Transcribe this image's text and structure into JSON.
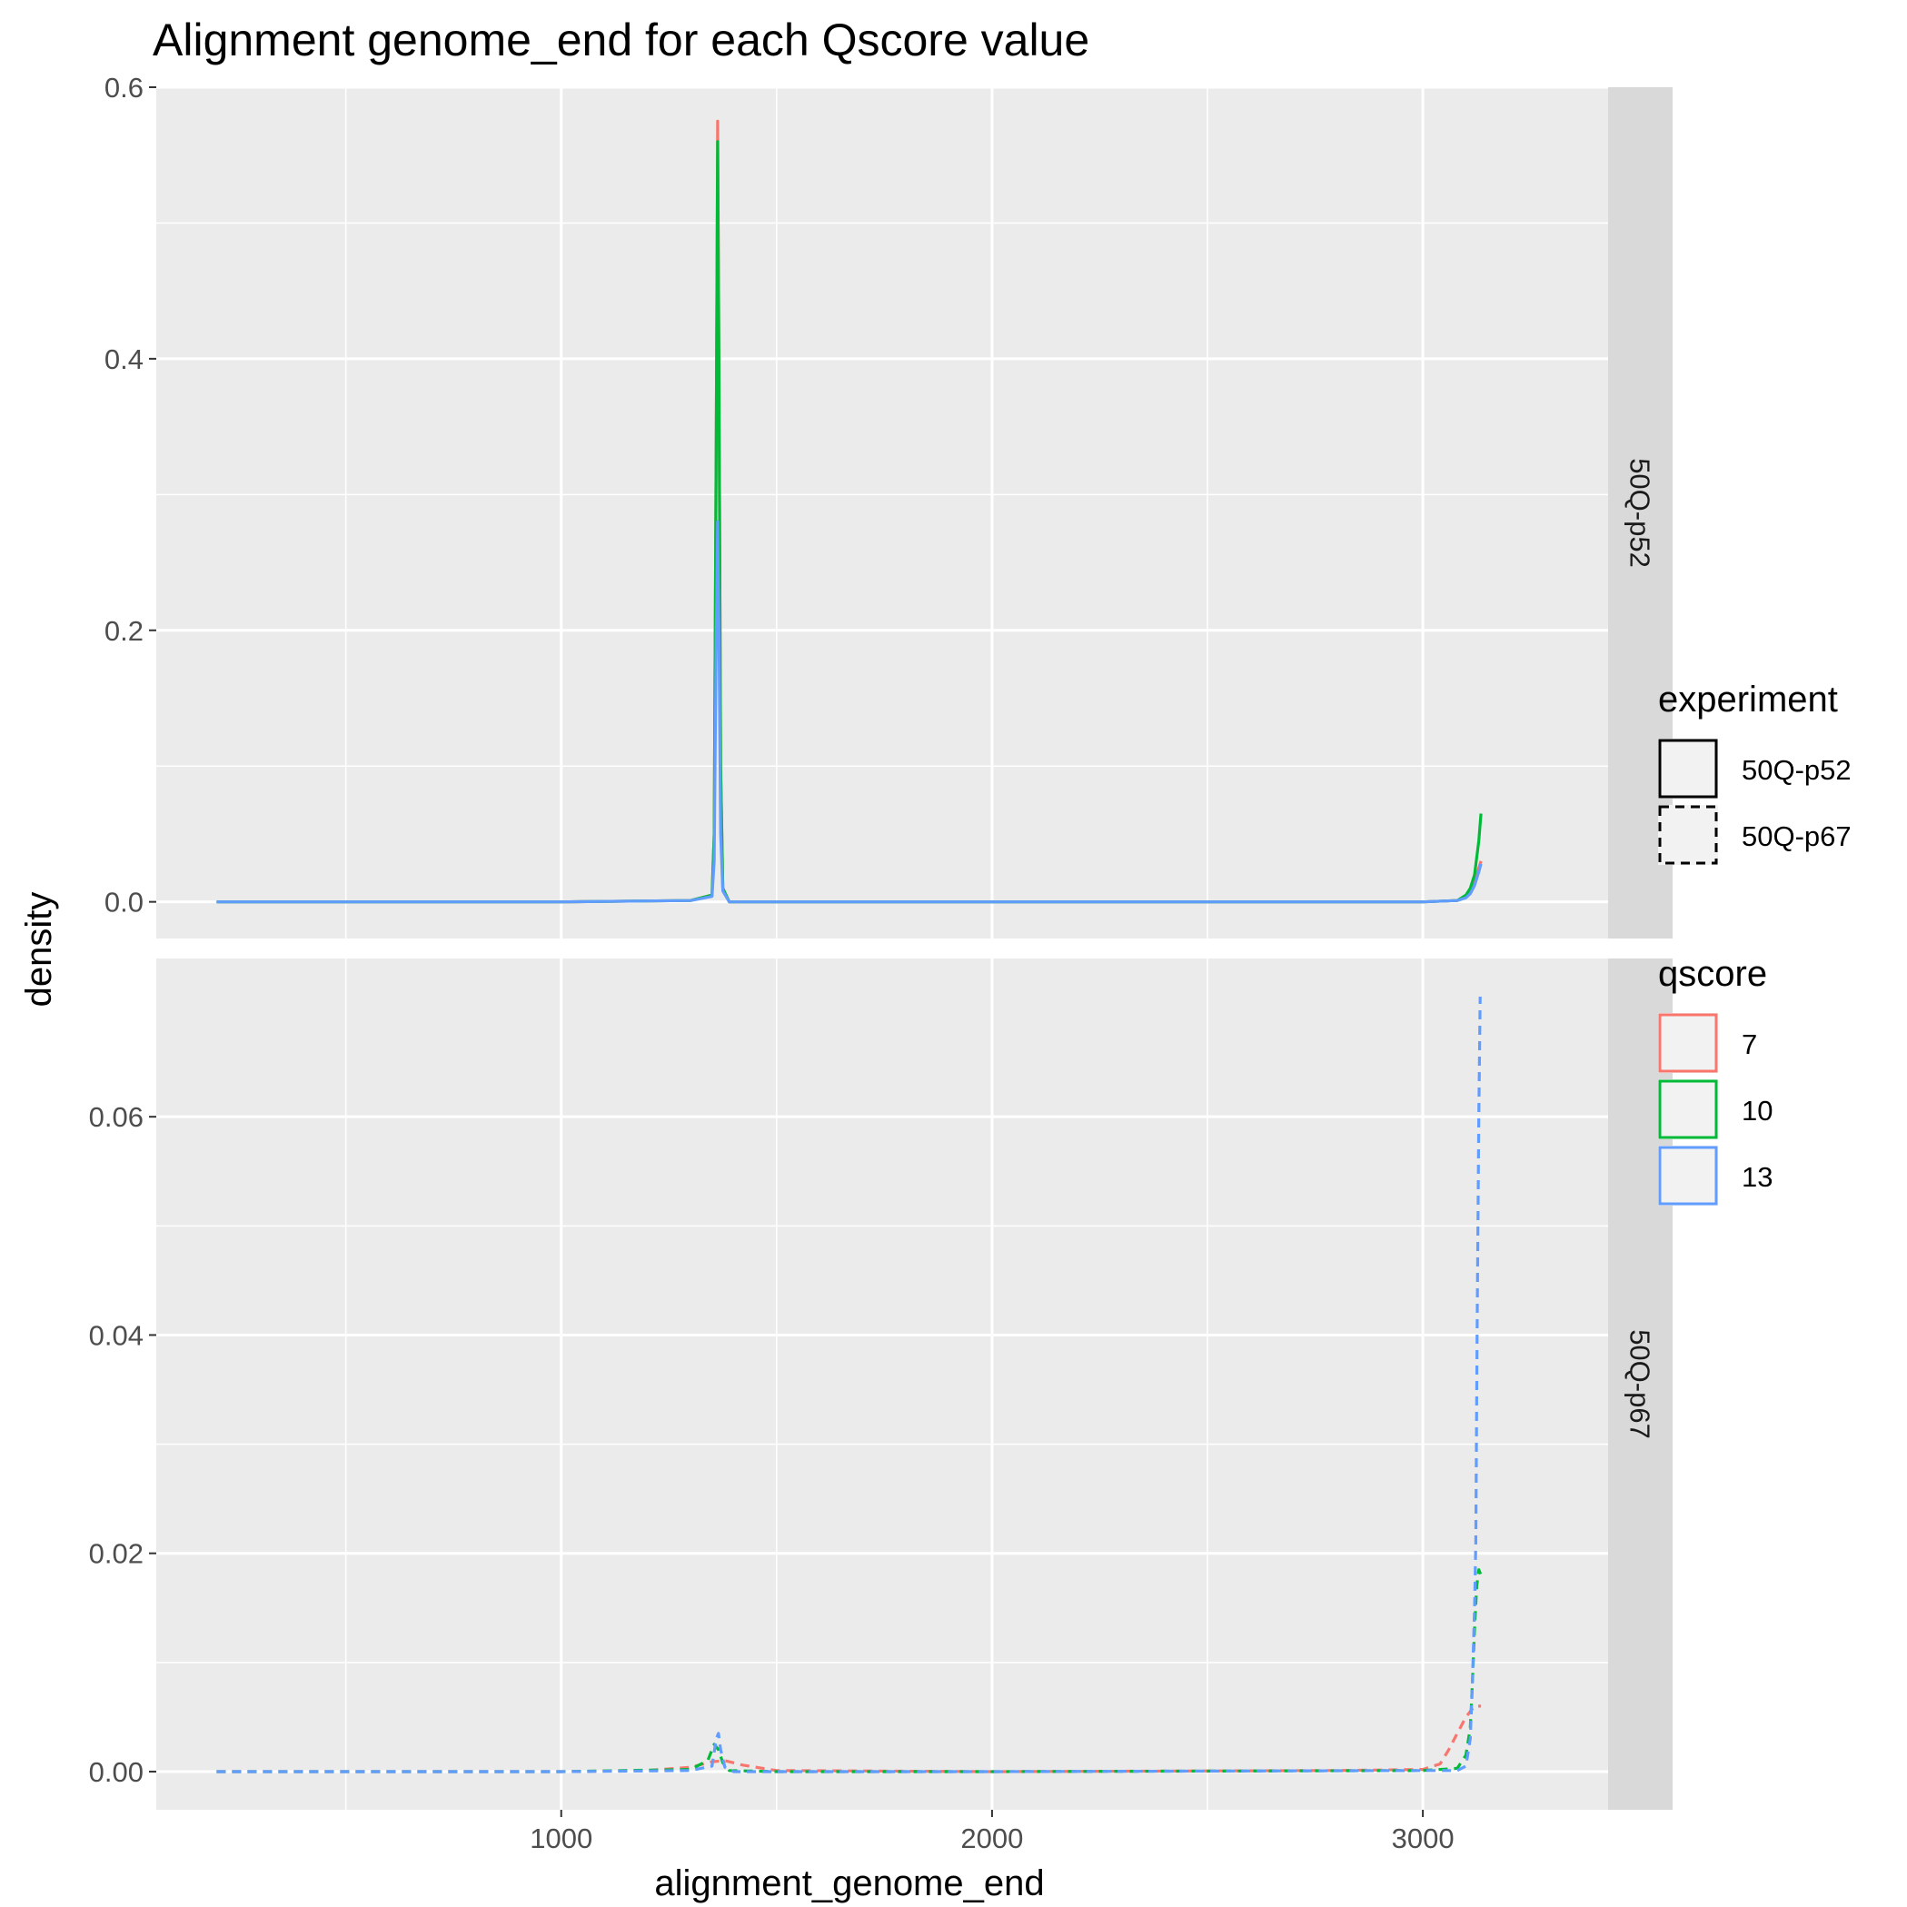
{
  "chart_data": {
    "type": "line",
    "title": "Alignment genome_end for each Qscore value",
    "xlabel": "alignment_genome_end",
    "ylabel": "density",
    "xlim": [
      60,
      3430
    ],
    "x_ticks": [
      1000,
      2000,
      3000
    ],
    "x_tick_labels": [
      "1000",
      "2000",
      "3000"
    ],
    "grid": true,
    "legend_position": "right",
    "legends": [
      {
        "title": "experiment",
        "entries": [
          {
            "label": "50Q-p52",
            "linetype": "solid"
          },
          {
            "label": "50Q-p67",
            "linetype": "dashed"
          }
        ]
      },
      {
        "title": "qscore",
        "entries": [
          {
            "label": "7",
            "color": "#F8766D"
          },
          {
            "label": "10",
            "color": "#00BA38"
          },
          {
            "label": "13",
            "color": "#619CFF"
          }
        ]
      }
    ],
    "panels": [
      {
        "strip": "50Q-p52",
        "linetype": "solid",
        "ylim": [
          -0.027,
          0.6
        ],
        "y_ticks": [
          0.0,
          0.2,
          0.4,
          0.6
        ],
        "y_tick_labels": [
          "0.0",
          "0.2",
          "0.4",
          "0.6"
        ],
        "series": [
          {
            "name": "7",
            "color": "#F8766D",
            "x": [
              200,
              1000,
              1300,
              1350,
              1355,
              1360,
              1363,
              1366,
              1370,
              1375,
              1390,
              1500,
              2000,
              3000,
              3080,
              3100,
              3110,
              3120,
              3130,
              3135
            ],
            "y": [
              0,
              0,
              0.001,
              0.005,
              0.05,
              0.35,
              0.575,
              0.4,
              0.1,
              0.01,
              0,
              0,
              0,
              0,
              0.001,
              0.004,
              0.008,
              0.015,
              0.025,
              0.03
            ]
          },
          {
            "name": "10",
            "color": "#00BA38",
            "x": [
              200,
              1000,
              1300,
              1350,
              1355,
              1360,
              1363,
              1366,
              1370,
              1375,
              1390,
              1500,
              2000,
              3000,
              3080,
              3100,
              3110,
              3120,
              3130,
              3135
            ],
            "y": [
              0,
              0,
              0.001,
              0.005,
              0.05,
              0.35,
              0.56,
              0.4,
              0.1,
              0.01,
              0,
              0,
              0,
              0,
              0.001,
              0.005,
              0.01,
              0.02,
              0.045,
              0.065
            ]
          },
          {
            "name": "13",
            "color": "#619CFF",
            "x": [
              200,
              1000,
              1300,
              1350,
              1355,
              1360,
              1363,
              1366,
              1370,
              1375,
              1390,
              1500,
              2000,
              3000,
              3080,
              3100,
              3110,
              3120,
              3130,
              3135
            ],
            "y": [
              0,
              0,
              0.001,
              0.004,
              0.03,
              0.2,
              0.28,
              0.2,
              0.05,
              0.008,
              0,
              0,
              0,
              0,
              0.001,
              0.003,
              0.006,
              0.012,
              0.022,
              0.028
            ]
          }
        ]
      },
      {
        "strip": "50Q-p67",
        "linetype": "dashed",
        "ylim": [
          -0.0035,
          0.0745
        ],
        "y_ticks": [
          0.0,
          0.02,
          0.04,
          0.06
        ],
        "y_tick_labels": [
          "0.00",
          "0.02",
          "0.04",
          "0.06"
        ],
        "series": [
          {
            "name": "7",
            "color": "#F8766D",
            "x": [
              200,
              1000,
              1200,
              1300,
              1350,
              1380,
              1420,
              1500,
              2000,
              2800,
              3000,
              3040,
              3060,
              3080,
              3100,
              3110,
              3120,
              3135
            ],
            "y": [
              0,
              0,
              0.0001,
              0.0004,
              0.0009,
              0.001,
              0.0006,
              0.0001,
              0,
              0.0001,
              0.0002,
              0.0007,
              0.002,
              0.0035,
              0.005,
              0.0055,
              0.006,
              0.006
            ]
          },
          {
            "name": "10",
            "color": "#00BA38",
            "x": [
              200,
              1000,
              1300,
              1340,
              1355,
              1365,
              1375,
              1390,
              1500,
              2000,
              3000,
              3080,
              3100,
              3110,
              3115,
              3120,
              3125,
              3130,
              3135
            ],
            "y": [
              0,
              0,
              0.0002,
              0.001,
              0.0025,
              0.002,
              0.0008,
              0.0001,
              0,
              0,
              0.0001,
              0.0003,
              0.0015,
              0.004,
              0.008,
              0.013,
              0.017,
              0.0185,
              0.018
            ]
          },
          {
            "name": "13",
            "color": "#619CFF",
            "x": [
              200,
              1000,
              1300,
              1350,
              1360,
              1365,
              1370,
              1380,
              1400,
              1500,
              2000,
              3000,
              3080,
              3100,
              3110,
              3115,
              3120,
              3123,
              3126,
              3130,
              3133
            ],
            "y": [
              0,
              0,
              0.0001,
              0.0005,
              0.003,
              0.0035,
              0.002,
              0.0004,
              0,
              0,
              0,
              0.0001,
              0.0001,
              0.0005,
              0.003,
              0.008,
              0.015,
              0.021,
              0.04,
              0.06,
              0.071
            ]
          }
        ]
      }
    ]
  }
}
